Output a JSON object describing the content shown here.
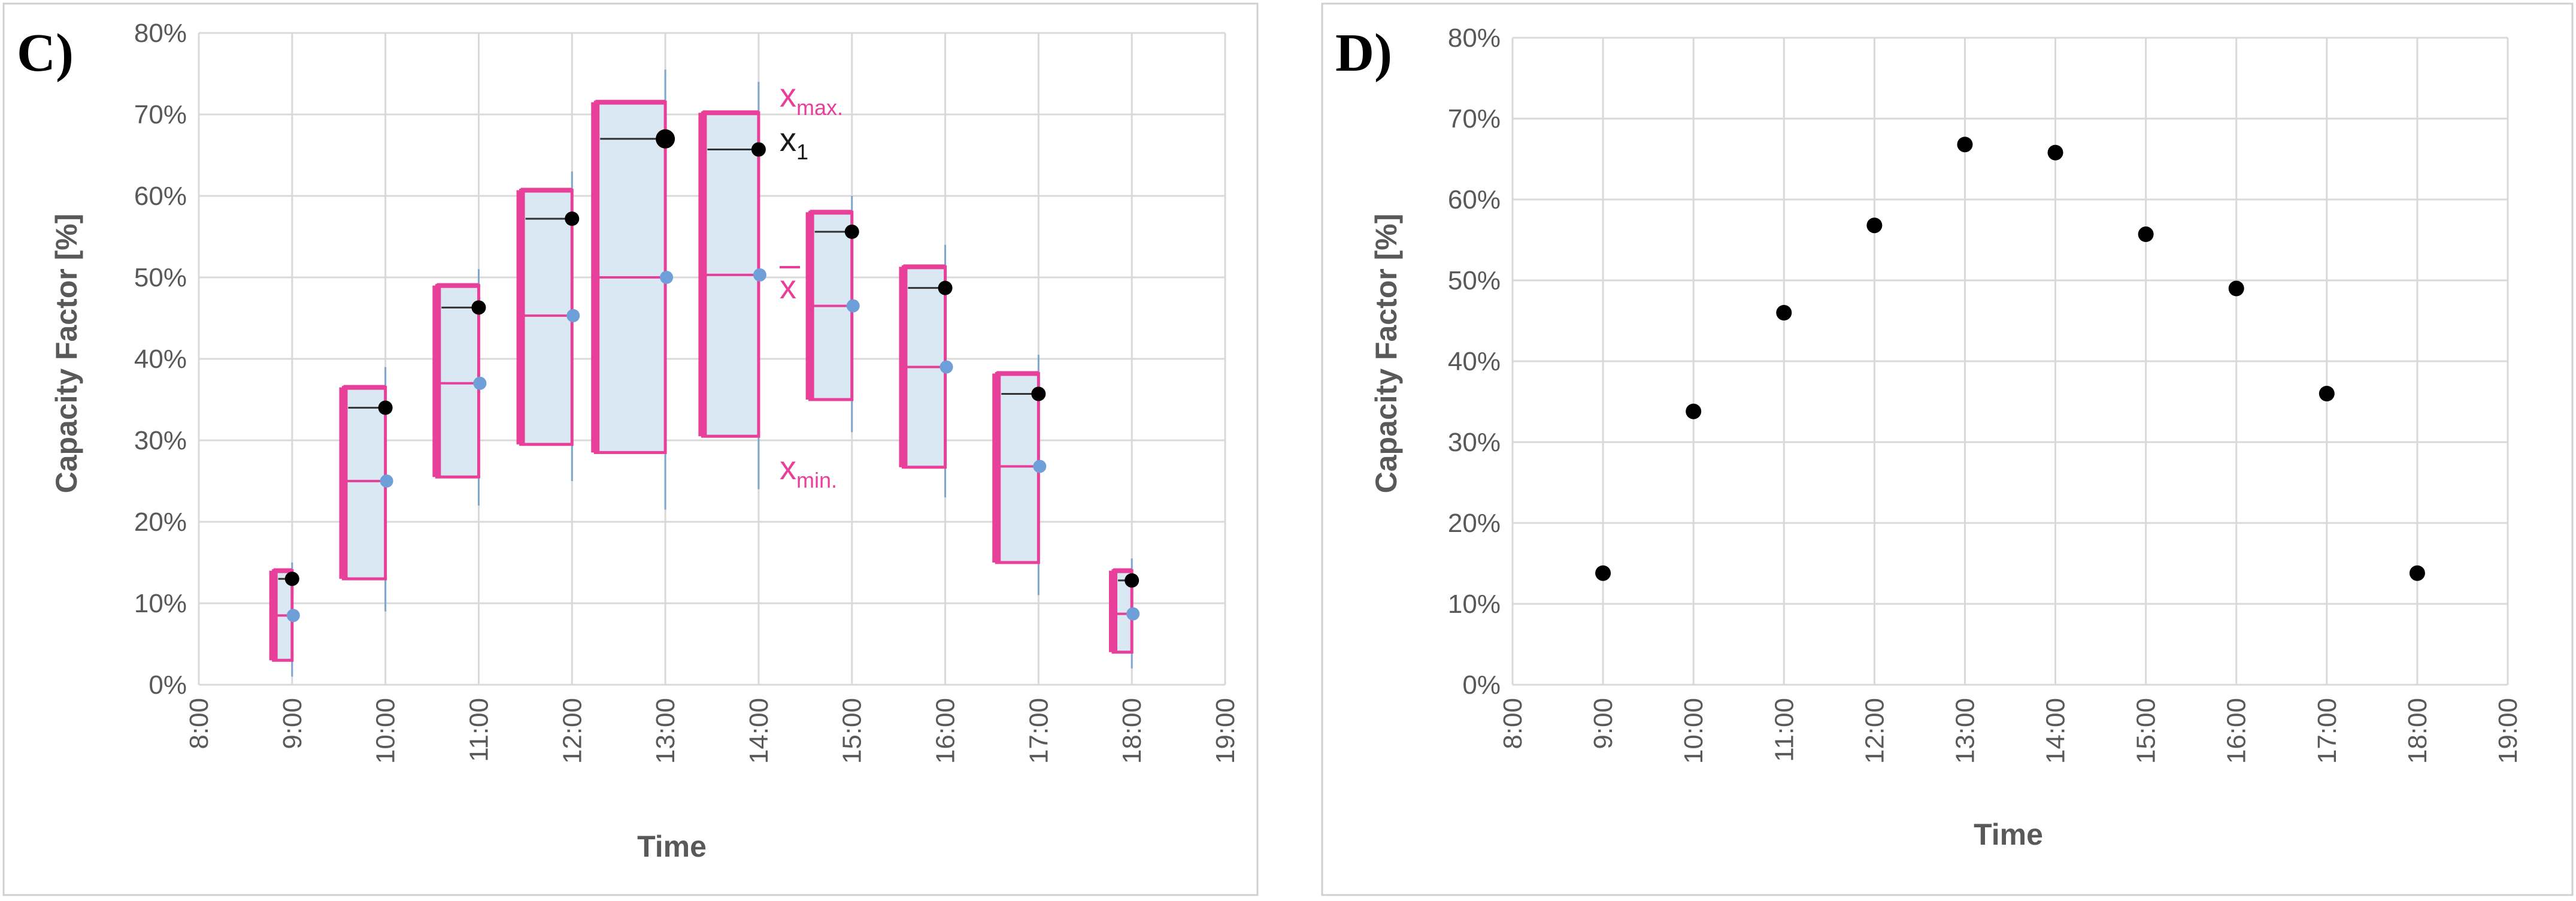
{
  "chart_data": [
    {
      "panel": "C)",
      "type": "box",
      "xlabel": "Time",
      "ylabel": "Capacity Factor [%]",
      "x_ticks": [
        "8:00",
        "9:00",
        "10:00",
        "11:00",
        "12:00",
        "13:00",
        "14:00",
        "15:00",
        "16:00",
        "17:00",
        "18:00",
        "19:00"
      ],
      "y_ticks": [
        "0%",
        "10%",
        "20%",
        "30%",
        "40%",
        "50%",
        "60%",
        "70%",
        "80%"
      ],
      "xlim": [
        8,
        19
      ],
      "ylim": [
        0,
        80
      ],
      "grid": true,
      "annotations": {
        "xmax": "x",
        "xmax_sub": "max.",
        "x1": "x",
        "x1_sub": "1",
        "xbar": "x",
        "xmin": "x",
        "xmin_sub": "min."
      },
      "colors": {
        "box_edge": "#e8409a",
        "box_fill": "#d9e8f2",
        "mean_point": "#6f9fd8",
        "x1_point": "#000000",
        "whisker": "#7fa6cc",
        "grid": "#d9d9d9"
      },
      "boxes": [
        {
          "time": "9:00",
          "x": 9,
          "min": 3,
          "max": 14,
          "mean": 8.5,
          "x1": 13,
          "whisker_low": 1,
          "whisker_high": 15,
          "width_h": 0.2
        },
        {
          "time": "10:00",
          "x": 10,
          "min": 13,
          "max": 36.5,
          "mean": 25,
          "x1": 34,
          "whisker_low": 9,
          "whisker_high": 39,
          "width_h": 0.45
        },
        {
          "time": "11:00",
          "x": 11,
          "min": 25.5,
          "max": 49,
          "mean": 37,
          "x1": 46.3,
          "whisker_low": 22,
          "whisker_high": 51,
          "width_h": 0.45
        },
        {
          "time": "12:00",
          "x": 12,
          "min": 29.5,
          "max": 60.7,
          "mean": 45.3,
          "x1": 57.2,
          "whisker_low": 25,
          "whisker_high": 63,
          "width_h": 0.55
        },
        {
          "time": "13:00",
          "x": 13,
          "min": 28.5,
          "max": 71.5,
          "mean": 50,
          "x1": 67,
          "whisker_low": 21.5,
          "whisker_high": 75.5,
          "width_h": 0.75
        },
        {
          "time": "14:00",
          "x": 14,
          "min": 30.5,
          "max": 70.2,
          "mean": 50.3,
          "x1": 65.7,
          "whisker_low": 24,
          "whisker_high": 74,
          "width_h": 0.6
        },
        {
          "time": "15:00",
          "x": 15,
          "min": 35,
          "max": 58,
          "mean": 46.5,
          "x1": 55.6,
          "whisker_low": 31,
          "whisker_high": 60,
          "width_h": 0.45
        },
        {
          "time": "16:00",
          "x": 16,
          "min": 26.7,
          "max": 51.3,
          "mean": 39,
          "x1": 48.7,
          "whisker_low": 23,
          "whisker_high": 54,
          "width_h": 0.45
        },
        {
          "time": "17:00",
          "x": 17,
          "min": 15,
          "max": 38.2,
          "mean": 26.8,
          "x1": 35.7,
          "whisker_low": 11,
          "whisker_high": 40.5,
          "width_h": 0.45
        },
        {
          "time": "18:00",
          "x": 18,
          "min": 4,
          "max": 14,
          "mean": 8.7,
          "x1": 12.8,
          "whisker_low": 2,
          "whisker_high": 15.5,
          "width_h": 0.2
        }
      ]
    },
    {
      "panel": "D)",
      "type": "scatter",
      "xlabel": "Time",
      "ylabel": "Capacity Factor [%]",
      "x_ticks": [
        "8:00",
        "9:00",
        "10:00",
        "11:00",
        "12:00",
        "13:00",
        "14:00",
        "15:00",
        "16:00",
        "17:00",
        "18:00",
        "19:00"
      ],
      "y_ticks": [
        "0%",
        "10%",
        "20%",
        "30%",
        "40%",
        "50%",
        "60%",
        "70%",
        "80%"
      ],
      "xlim": [
        8,
        19
      ],
      "ylim": [
        0,
        80
      ],
      "grid": true,
      "colors": {
        "point": "#000000",
        "grid": "#d9d9d9"
      },
      "series": [
        {
          "name": "x1",
          "x": [
            9,
            10,
            11,
            12,
            13,
            14,
            15,
            16,
            17,
            18
          ],
          "values": [
            13.8,
            33.8,
            46,
            56.8,
            66.8,
            65.8,
            55.7,
            49,
            36,
            13.8
          ]
        }
      ]
    }
  ]
}
